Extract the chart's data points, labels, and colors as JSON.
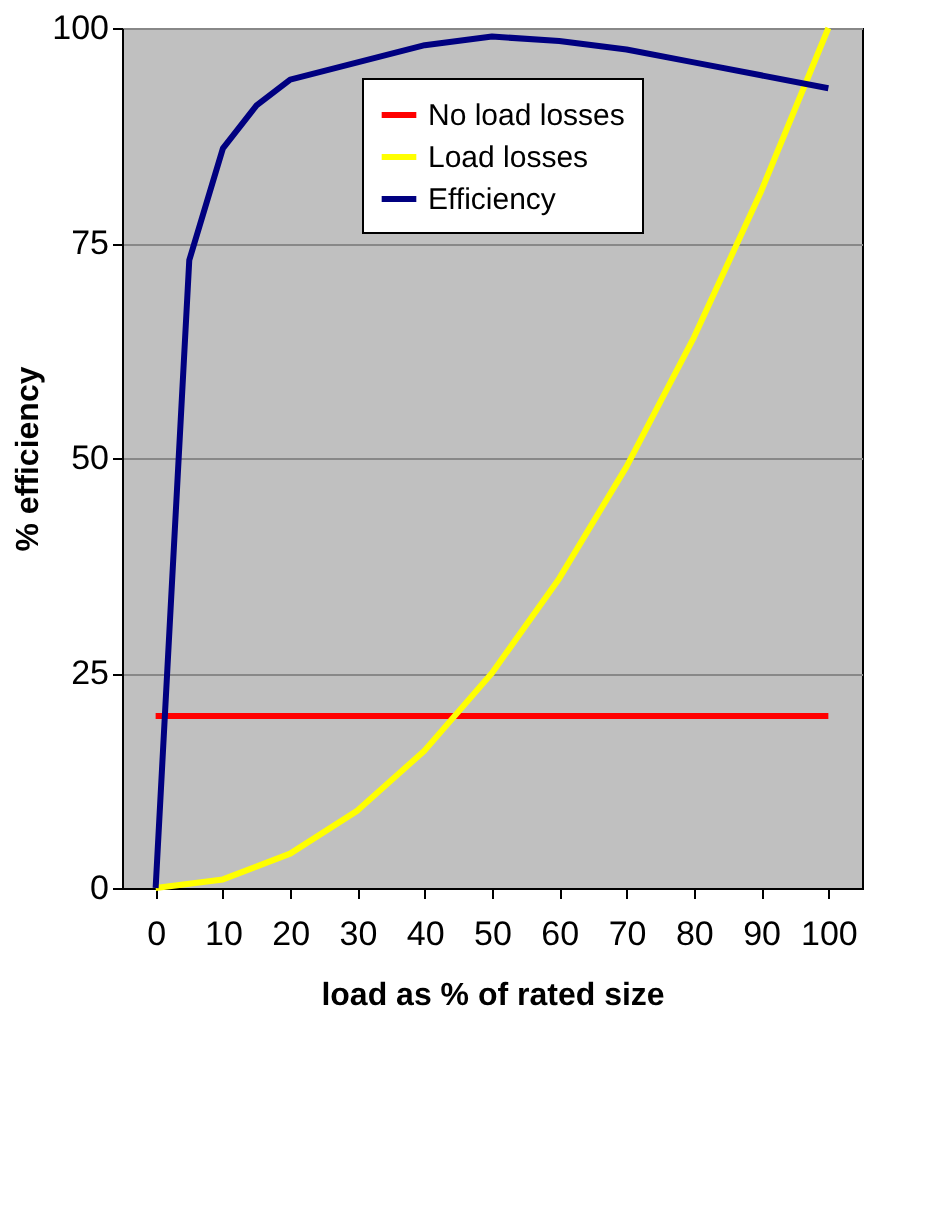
{
  "chart_data": {
    "type": "line",
    "xlabel": "load as % of rated size",
    "ylabel": "% efficiency",
    "xlim": [
      -5,
      105
    ],
    "xticks": [
      0,
      10,
      20,
      30,
      40,
      50,
      60,
      70,
      80,
      90,
      100
    ],
    "ylim": [
      0,
      100
    ],
    "yticks": [
      0,
      25,
      50,
      75,
      100
    ],
    "grid": "y",
    "legend": "top",
    "marker": "none",
    "line_style": "solid",
    "series": [
      {
        "name": "No load losses",
        "color": "#ff0000",
        "x": [
          0,
          100
        ],
        "values": [
          20,
          20
        ]
      },
      {
        "name": "Load losses",
        "color": "#ffff00",
        "x": [
          0,
          10,
          20,
          30,
          40,
          50,
          60,
          70,
          80,
          90,
          100
        ],
        "values": [
          0,
          1,
          4,
          9,
          16,
          25,
          36,
          49,
          64,
          81,
          100
        ]
      },
      {
        "name": "Efficiency",
        "color": "#000080",
        "x": [
          0,
          5,
          10,
          15,
          20,
          30,
          40,
          50,
          60,
          70,
          80,
          90,
          100
        ],
        "values": [
          0,
          73,
          86,
          91,
          94,
          96,
          98,
          99,
          98.5,
          97.5,
          96,
          94.5,
          93
        ]
      }
    ]
  }
}
